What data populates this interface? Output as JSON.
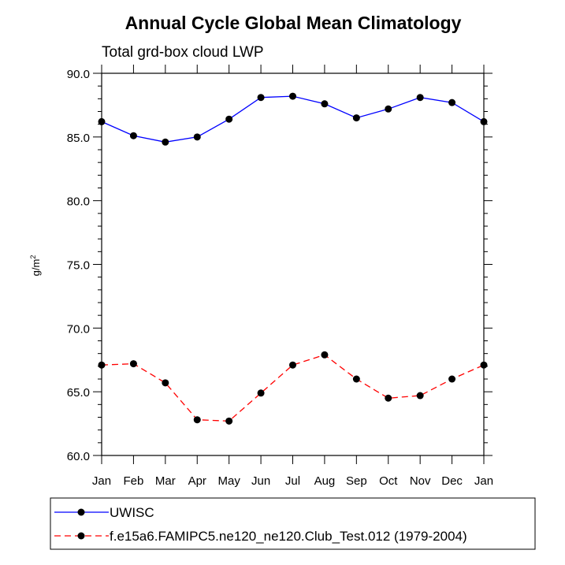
{
  "chart_data": {
    "type": "line",
    "title": "Annual Cycle Global Mean Climatology",
    "subtitle": "Total grd-box cloud LWP",
    "ylabel_base": "g/m",
    "ylabel_sup": "2",
    "xlabel": "",
    "ylim": [
      60,
      90
    ],
    "yticks": [
      "60.0",
      "65.0",
      "70.0",
      "75.0",
      "80.0",
      "85.0",
      "90.0"
    ],
    "categories": [
      "Jan",
      "Feb",
      "Mar",
      "Apr",
      "May",
      "Jun",
      "Jul",
      "Aug",
      "Sep",
      "Oct",
      "Nov",
      "Dec",
      "Jan"
    ],
    "series": [
      {
        "name": "UWISC",
        "color": "#0000ff",
        "dash": "solid",
        "values": [
          86.2,
          85.1,
          84.6,
          85.0,
          86.4,
          88.1,
          88.2,
          87.6,
          86.5,
          87.2,
          88.1,
          87.7,
          86.2
        ]
      },
      {
        "name": "f.e15a6.FAMIPC5.ne120_ne120.Club_Test.012 (1979-2004)",
        "color": "#ff0000",
        "dash": "dashed",
        "values": [
          67.1,
          67.2,
          65.7,
          62.8,
          62.7,
          64.9,
          67.1,
          67.9,
          66.0,
          64.5,
          64.7,
          66.0,
          67.1
        ]
      }
    ]
  }
}
